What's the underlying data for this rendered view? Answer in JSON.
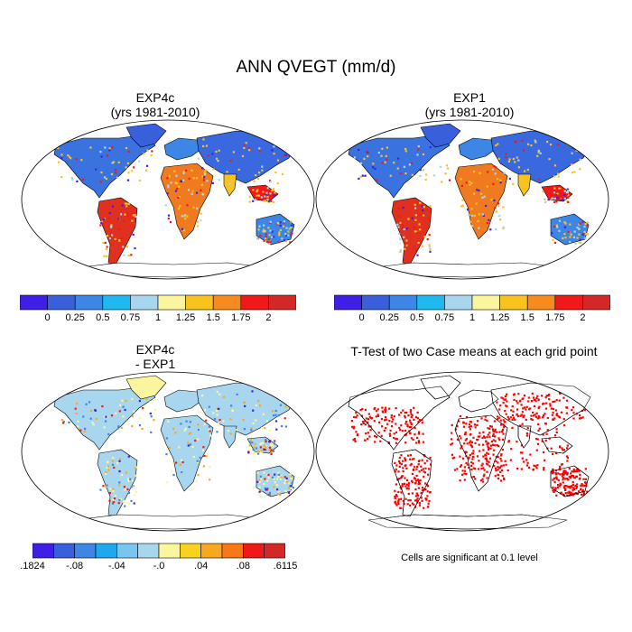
{
  "figure": {
    "title": "ANN QVEGT (mm/d)",
    "footnote": "Cells are significant at 0.1 level"
  },
  "panels": [
    {
      "id": "a",
      "title_line1": "EXP4c",
      "title_line2": "(yrs 1981-2010)"
    },
    {
      "id": "b",
      "title_line1": "EXP1",
      "title_line2": "(yrs 1981-2010)"
    },
    {
      "id": "c",
      "title_line1": "EXP4c",
      "title_line2": "- EXP1"
    },
    {
      "id": "d",
      "title_line1": "T-Test of two Case means at each grid point",
      "title_line2": ""
    }
  ],
  "colorbars": {
    "abs": {
      "colors": [
        "#3d1fe6",
        "#3a5fdb",
        "#3d86e6",
        "#1fb8ef",
        "#a8d6ef",
        "#fbf5a0",
        "#f8c21f",
        "#f88a1f",
        "#f01818",
        "#d42828"
      ],
      "labels": [
        "0",
        "0.25",
        "0.5",
        "0.75",
        "1",
        "1.25",
        "1.5",
        "1.75",
        "2"
      ]
    },
    "diff": {
      "colors": [
        "#3d1fe6",
        "#3a5fdb",
        "#3d86e6",
        "#1fa8ef",
        "#78c6ef",
        "#a8d6ef",
        "#fbf5a0",
        "#f8d21f",
        "#f8a81f",
        "#f87818",
        "#f01818",
        "#d42828"
      ],
      "labels": [
        ".1824",
        "-.08",
        "-.04",
        "-.0",
        ".04",
        ".08",
        ".6115"
      ]
    }
  }
}
